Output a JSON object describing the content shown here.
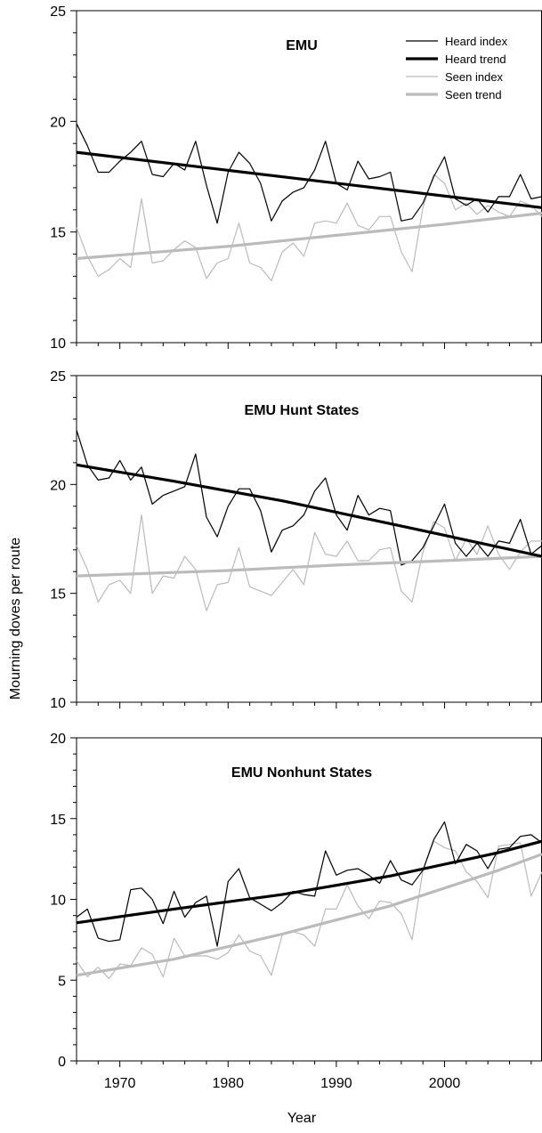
{
  "chart_data": {
    "type": "line",
    "ylabel": "Mourning doves per route",
    "xlabel": "Year",
    "xlim": [
      1966,
      2009
    ],
    "x_ticks": [
      1970,
      1980,
      1990,
      2000
    ],
    "legend": {
      "placement": "top-right",
      "entries": [
        {
          "label": "Heard index",
          "color": "#000000",
          "style": "thin"
        },
        {
          "label": "Heard trend",
          "color": "#000000",
          "style": "thick"
        },
        {
          "label": "Seen index",
          "color": "#bbbbbb",
          "style": "thin"
        },
        {
          "label": "Seen trend",
          "color": "#bbbbbb",
          "style": "thick"
        }
      ]
    },
    "panels": [
      {
        "title": "EMU",
        "ylim": [
          10,
          25
        ],
        "y_ticks": [
          10,
          15,
          20,
          25
        ],
        "series": [
          {
            "name": "Heard index",
            "x": [
              1966,
              1967,
              1968,
              1969,
              1970,
              1971,
              1972,
              1973,
              1974,
              1975,
              1976,
              1977,
              1978,
              1979,
              1980,
              1981,
              1982,
              1983,
              1984,
              1985,
              1986,
              1987,
              1988,
              1989,
              1990,
              1991,
              1992,
              1993,
              1994,
              1995,
              1996,
              1997,
              1998,
              1999,
              2000,
              2001,
              2002,
              2003,
              2004,
              2005,
              2006,
              2007,
              2008,
              2009
            ],
            "y": [
              19.9,
              18.9,
              17.7,
              17.7,
              18.2,
              18.6,
              19.1,
              17.6,
              17.5,
              18.1,
              17.8,
              19.1,
              17.1,
              15.4,
              17.7,
              18.6,
              18.1,
              17.2,
              15.5,
              16.4,
              16.8,
              17.0,
              17.8,
              19.1,
              17.2,
              16.9,
              18.2,
              17.4,
              17.5,
              17.7,
              15.5,
              15.6,
              16.3,
              17.5,
              18.4,
              16.5,
              16.2,
              16.5,
              15.9,
              16.6,
              16.6,
              17.6,
              16.5,
              16.6
            ]
          },
          {
            "name": "Heard trend",
            "x": [
              1966,
              2009
            ],
            "y": [
              18.6,
              16.1
            ]
          },
          {
            "name": "Seen index",
            "x": [
              1966,
              1967,
              1968,
              1969,
              1970,
              1971,
              1972,
              1973,
              1974,
              1975,
              1976,
              1977,
              1978,
              1979,
              1980,
              1981,
              1982,
              1983,
              1984,
              1985,
              1986,
              1987,
              1988,
              1989,
              1990,
              1991,
              1992,
              1993,
              1994,
              1995,
              1996,
              1997,
              1998,
              1999,
              2000,
              2001,
              2002,
              2003,
              2004,
              2005,
              2006,
              2007,
              2008,
              2009
            ],
            "y": [
              15.2,
              13.9,
              13.0,
              13.3,
              13.8,
              13.4,
              16.5,
              13.6,
              13.7,
              14.2,
              14.6,
              14.3,
              12.9,
              13.6,
              13.8,
              15.4,
              13.6,
              13.4,
              12.8,
              14.1,
              14.5,
              13.9,
              15.4,
              15.5,
              15.4,
              16.3,
              15.3,
              15.1,
              15.7,
              15.7,
              14.1,
              13.2,
              16.1,
              17.6,
              17.2,
              16.0,
              16.3,
              15.8,
              16.2,
              15.9,
              15.7,
              16.4,
              16.2,
              15.7
            ]
          },
          {
            "name": "Seen trend",
            "x": [
              1966,
              1980,
              1990,
              2000,
              2009
            ],
            "y": [
              13.8,
              14.35,
              14.85,
              15.35,
              15.85
            ]
          }
        ]
      },
      {
        "title": "EMU Hunt States",
        "ylim": [
          10,
          25
        ],
        "y_ticks": [
          10,
          15,
          20,
          25
        ],
        "series": [
          {
            "name": "Heard index",
            "x": [
              1966,
              1967,
              1968,
              1969,
              1970,
              1971,
              1972,
              1973,
              1974,
              1975,
              1976,
              1977,
              1978,
              1979,
              1980,
              1981,
              1982,
              1983,
              1984,
              1985,
              1986,
              1987,
              1988,
              1989,
              1990,
              1991,
              1992,
              1993,
              1994,
              1995,
              1996,
              1997,
              1998,
              1999,
              2000,
              2001,
              2002,
              2003,
              2004,
              2005,
              2006,
              2007,
              2008,
              2009
            ],
            "y": [
              22.5,
              20.9,
              20.2,
              20.3,
              21.1,
              20.2,
              20.8,
              19.1,
              19.5,
              19.7,
              19.9,
              21.4,
              18.5,
              17.6,
              19.0,
              19.8,
              19.8,
              18.8,
              16.9,
              17.9,
              18.1,
              18.6,
              19.7,
              20.3,
              18.6,
              17.9,
              19.5,
              18.6,
              18.9,
              18.8,
              16.3,
              16.5,
              17.1,
              18.1,
              19.1,
              17.3,
              16.7,
              17.3,
              16.7,
              17.4,
              17.3,
              18.4,
              16.8,
              17.2
            ]
          },
          {
            "name": "Heard trend",
            "x": [
              1966,
              1975,
              1985,
              1995,
              2009
            ],
            "y": [
              20.9,
              20.15,
              19.25,
              18.2,
              16.7
            ]
          },
          {
            "name": "Seen index",
            "x": [
              1966,
              1967,
              1968,
              1969,
              1970,
              1971,
              1972,
              1973,
              1974,
              1975,
              1976,
              1977,
              1978,
              1979,
              1980,
              1981,
              1982,
              1983,
              1984,
              1985,
              1986,
              1987,
              1988,
              1989,
              1990,
              1991,
              1992,
              1993,
              1994,
              1995,
              1996,
              1997,
              1998,
              1999,
              2000,
              2001,
              2002,
              2003,
              2004,
              2005,
              2006,
              2007,
              2008,
              2009
            ],
            "y": [
              17.2,
              16.1,
              14.6,
              15.4,
              15.6,
              15.0,
              18.6,
              15.0,
              15.8,
              15.7,
              16.7,
              16.1,
              14.2,
              15.4,
              15.5,
              17.1,
              15.3,
              15.1,
              14.9,
              15.5,
              16.1,
              15.4,
              17.8,
              16.8,
              16.7,
              17.4,
              16.5,
              16.5,
              17.0,
              17.1,
              15.1,
              14.6,
              16.9,
              18.3,
              18.0,
              16.5,
              17.5,
              16.8,
              18.1,
              16.8,
              16.1,
              16.9,
              17.4,
              17.4
            ]
          },
          {
            "name": "Seen trend",
            "x": [
              1966,
              1980,
              1990,
              2000,
              2009
            ],
            "y": [
              15.8,
              16.05,
              16.3,
              16.5,
              16.7
            ]
          }
        ]
      },
      {
        "title": "EMU Nonhunt States",
        "ylim": [
          0,
          20
        ],
        "y_ticks": [
          0,
          5,
          10,
          15,
          20
        ],
        "series": [
          {
            "name": "Heard index",
            "x": [
              1966,
              1967,
              1968,
              1969,
              1970,
              1971,
              1972,
              1973,
              1974,
              1975,
              1976,
              1977,
              1978,
              1979,
              1980,
              1981,
              1982,
              1983,
              1984,
              1985,
              1986,
              1987,
              1988,
              1989,
              1990,
              1991,
              1992,
              1993,
              1994,
              1995,
              1996,
              1997,
              1998,
              1999,
              2000,
              2001,
              2002,
              2003,
              2004,
              2005,
              2006,
              2007,
              2008,
              2009
            ],
            "y": [
              8.9,
              9.4,
              7.6,
              7.4,
              7.5,
              10.6,
              10.7,
              10.0,
              8.5,
              10.5,
              8.9,
              9.8,
              10.2,
              7.1,
              11.1,
              11.9,
              10.1,
              9.7,
              9.3,
              9.8,
              10.5,
              10.3,
              10.2,
              13.0,
              11.5,
              11.8,
              11.9,
              11.5,
              11.0,
              12.4,
              11.2,
              10.9,
              11.8,
              13.7,
              14.8,
              12.2,
              13.4,
              13.0,
              11.9,
              13.1,
              13.2,
              13.9,
              14.0,
              13.5
            ]
          },
          {
            "name": "Heard trend",
            "x": [
              1966,
              1975,
              1985,
              1995,
              2005,
              2009
            ],
            "y": [
              8.55,
              9.4,
              10.3,
              11.45,
              12.9,
              13.6
            ]
          },
          {
            "name": "Seen index",
            "x": [
              1966,
              1967,
              1968,
              1969,
              1970,
              1971,
              1972,
              1973,
              1974,
              1975,
              1976,
              1977,
              1978,
              1979,
              1980,
              1981,
              1982,
              1983,
              1984,
              1985,
              1986,
              1987,
              1988,
              1989,
              1990,
              1991,
              1992,
              1993,
              1994,
              1995,
              1996,
              1997,
              1998,
              1999,
              2000,
              2001,
              2002,
              2003,
              2004,
              2005,
              2006,
              2007,
              2008,
              2009
            ],
            "y": [
              6.2,
              5.2,
              5.8,
              5.1,
              6.0,
              5.9,
              7.0,
              6.6,
              5.2,
              7.6,
              6.5,
              6.5,
              6.5,
              6.3,
              6.7,
              7.8,
              6.8,
              6.5,
              5.3,
              7.8,
              8.0,
              7.8,
              7.1,
              9.4,
              9.4,
              10.9,
              9.6,
              8.8,
              9.9,
              9.8,
              9.1,
              7.5,
              11.8,
              13.6,
              13.2,
              13.0,
              11.7,
              11.1,
              10.1,
              13.3,
              13.4,
              13.5,
              10.2,
              11.7
            ]
          },
          {
            "name": "Seen trend",
            "x": [
              1966,
              1975,
              1985,
              1995,
              2005,
              2009
            ],
            "y": [
              5.3,
              6.3,
              7.85,
              9.6,
              11.8,
              12.8
            ]
          }
        ]
      }
    ]
  }
}
